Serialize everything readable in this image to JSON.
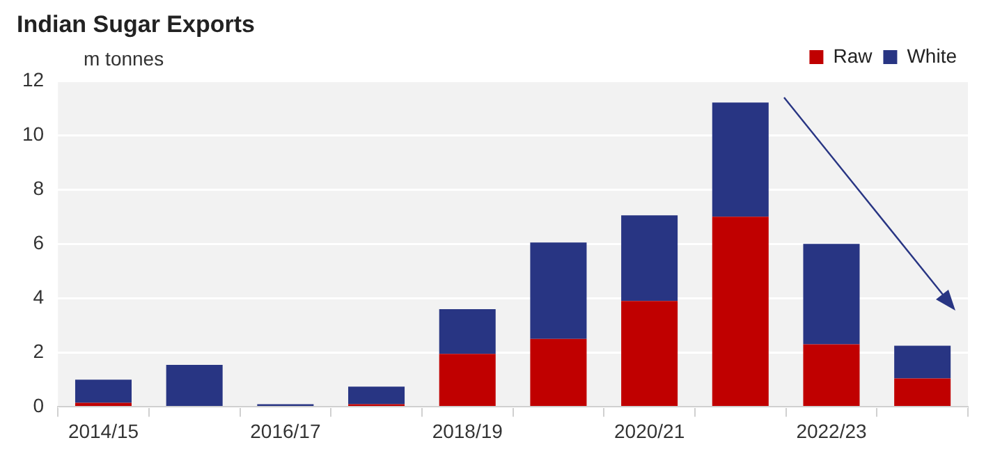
{
  "chart_data": {
    "type": "bar",
    "title": "Indian Sugar Exports",
    "ylabel": "m tonnes",
    "categories": [
      "2014/15",
      null,
      "2016/17",
      null,
      "2018/19",
      null,
      "2020/21",
      null,
      "2022/23",
      null
    ],
    "stacked": true,
    "series": [
      {
        "name": "Raw",
        "color": "#c00000",
        "values": [
          0.15,
          0,
          0,
          0.1,
          1.95,
          2.5,
          3.9,
          7.0,
          2.3,
          1.05
        ]
      },
      {
        "name": "White",
        "color": "#283583",
        "values": [
          0.85,
          1.55,
          0.1,
          0.65,
          1.65,
          3.55,
          3.15,
          4.2,
          3.7,
          1.2
        ]
      }
    ],
    "ylim": [
      0,
      12
    ],
    "yticks": [
      0,
      2,
      4,
      6,
      8,
      10,
      12
    ],
    "grid": "y",
    "legend": "top right"
  }
}
